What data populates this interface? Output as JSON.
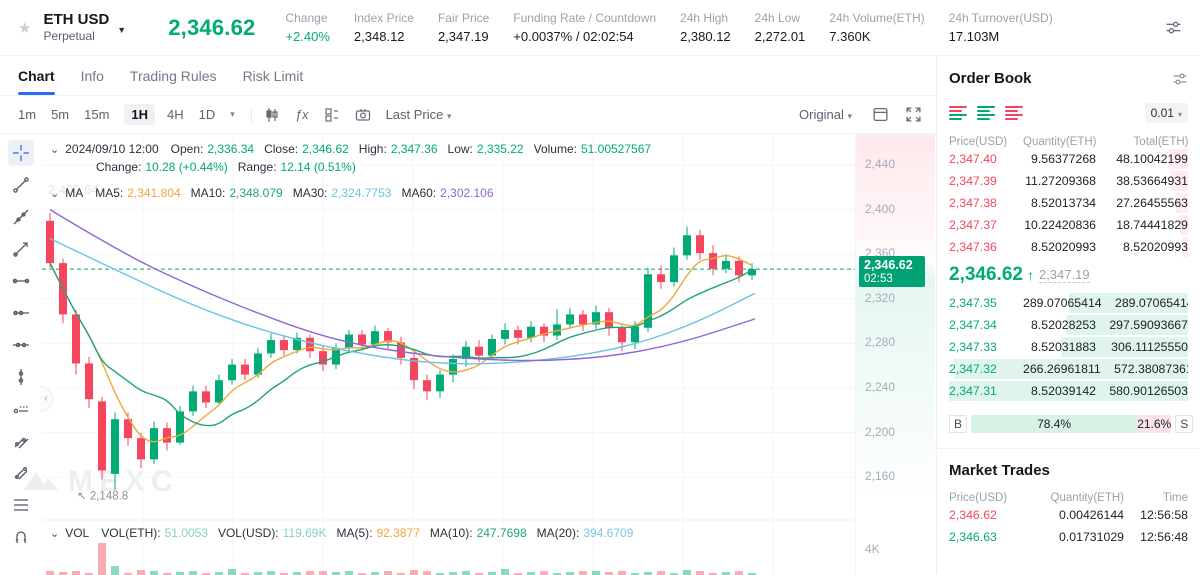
{
  "colors": {
    "green": "#00ab76",
    "red": "#f5465d",
    "blue": "#2b6cf6",
    "tag_green": "#00a273"
  },
  "icons": {
    "favorite": "★",
    "symbol_caret": "▼",
    "dropdown_caret": "▾",
    "legend_collapse": "⌄",
    "collapse_chevron": "‹",
    "fx": "ƒx"
  },
  "header": {
    "symbol": "ETH USD",
    "contract_type": "Perpetual",
    "last_price": "2,346.62",
    "stats": [
      {
        "label": "Change",
        "value": "+2.40%",
        "green": true
      },
      {
        "label": "Index Price",
        "value": "2,348.12"
      },
      {
        "label": "Fair Price",
        "value": "2,347.19"
      },
      {
        "label": "Funding Rate / Countdown",
        "value": "+0.0037% / 02:02:54"
      },
      {
        "label": "24h High",
        "value": "2,380.12"
      },
      {
        "label": "24h Low",
        "value": "2,272.01"
      },
      {
        "label": "24h Volume(ETH)",
        "value": "7.360K"
      },
      {
        "label": "24h Turnover(USD)",
        "value": "17.103M"
      }
    ]
  },
  "tabs": {
    "items": [
      "Chart",
      "Info",
      "Trading Rules",
      "Risk Limit"
    ],
    "active": "Chart"
  },
  "toolbar": {
    "timeframes": [
      "1m",
      "5m",
      "15m",
      "1H",
      "4H",
      "1D"
    ],
    "active_timeframe": "1H",
    "price_mode": "Last Price",
    "chart_style": "Original"
  },
  "legend": {
    "datetime": "2024/09/10 12:00",
    "line1": [
      {
        "label": "Open:",
        "value": "2,336.34"
      },
      {
        "label": "Close:",
        "value": "2,346.62"
      },
      {
        "label": "High:",
        "value": "2,347.36"
      },
      {
        "label": "Low:",
        "value": "2,335.22"
      },
      {
        "label": "Volume:",
        "value": "51.00527567"
      }
    ],
    "line2": [
      {
        "label": "Change:",
        "value": "10.28 (+0.44%)"
      },
      {
        "label": "Range:",
        "value": "12.14 (0.51%)"
      }
    ],
    "ma_label": "MA",
    "ma_items": [
      {
        "label": "MA5:",
        "value": "2,341.804",
        "color": "#efa83a"
      },
      {
        "label": "MA10:",
        "value": "2,348.079",
        "color": "#1fa37f"
      },
      {
        "label": "MA30:",
        "value": "2,324.7753",
        "color": "#6cc2e3"
      },
      {
        "label": "MA60:",
        "value": "2,302.106",
        "color": "#9065d6"
      }
    ],
    "vol_label": "VOL",
    "vol_items": [
      {
        "label": "VOL(ETH):",
        "value": "51.0053",
        "color": "#86cfc3"
      },
      {
        "label": "VOL(USD):",
        "value": "119.69K",
        "color": "#86cfc3"
      },
      {
        "label": "MA(5):",
        "value": "92.3877",
        "color": "#efa83a"
      },
      {
        "label": "MA(10):",
        "value": "247.7698",
        "color": "#1fa37f"
      },
      {
        "label": "MA(20):",
        "value": "394.6709",
        "color": "#7cc3e8"
      }
    ]
  },
  "chart": {
    "axis_ghost": "2,400.64",
    "vol_axis_label": "4K",
    "price_tag": {
      "price": "2,346.62",
      "countdown": "02:53"
    },
    "watermark": "MEXC"
  },
  "chart_data": {
    "type": "candlestick",
    "interval": "1H",
    "title": "ETH USD Perpetual 1H",
    "price_axis_ticks": [
      2440,
      2400,
      2360,
      2320,
      2280,
      2240,
      2200,
      2160
    ],
    "ylim": [
      2130,
      2460
    ],
    "current_price": 2346.62,
    "x0": 50,
    "dx": 13,
    "low_marker": {
      "arrow": "↖",
      "text": "2,148.8",
      "price": 2148.8,
      "candle_index": 5
    },
    "candles": [
      [
        2390,
        2397,
        2348,
        2352
      ],
      [
        2352,
        2356,
        2298,
        2306
      ],
      [
        2306,
        2310,
        2252,
        2262
      ],
      [
        2262,
        2268,
        2222,
        2230
      ],
      [
        2228,
        2232,
        2158,
        2166
      ],
      [
        2163,
        2218,
        2148.8,
        2212
      ],
      [
        2212,
        2218,
        2188,
        2195
      ],
      [
        2195,
        2200,
        2168,
        2176
      ],
      [
        2176,
        2210,
        2172,
        2204
      ],
      [
        2204,
        2209,
        2184,
        2191
      ],
      [
        2191,
        2224,
        2189,
        2219
      ],
      [
        2219,
        2242,
        2215,
        2237
      ],
      [
        2237,
        2242,
        2222,
        2227
      ],
      [
        2227,
        2252,
        2225,
        2247
      ],
      [
        2247,
        2266,
        2243,
        2261
      ],
      [
        2261,
        2266,
        2247,
        2252
      ],
      [
        2252,
        2276,
        2249,
        2271
      ],
      [
        2271,
        2289,
        2267,
        2283
      ],
      [
        2283,
        2287,
        2269,
        2274
      ],
      [
        2274,
        2290,
        2271,
        2285
      ],
      [
        2285,
        2288,
        2267,
        2273
      ],
      [
        2273,
        2278,
        2255,
        2261
      ],
      [
        2261,
        2280,
        2257,
        2276
      ],
      [
        2276,
        2292,
        2271,
        2288
      ],
      [
        2288,
        2292,
        2274,
        2279
      ],
      [
        2279,
        2296,
        2276,
        2291
      ],
      [
        2291,
        2294,
        2275,
        2281
      ],
      [
        2281,
        2286,
        2261,
        2267
      ],
      [
        2267,
        2272,
        2239,
        2247
      ],
      [
        2247,
        2252,
        2229,
        2237
      ],
      [
        2237,
        2256,
        2231,
        2252
      ],
      [
        2252,
        2270,
        2245,
        2266
      ],
      [
        2266,
        2282,
        2259,
        2277
      ],
      [
        2277,
        2283,
        2263,
        2269
      ],
      [
        2269,
        2288,
        2265,
        2284
      ],
      [
        2284,
        2298,
        2279,
        2292
      ],
      [
        2292,
        2296,
        2279,
        2285
      ],
      [
        2285,
        2300,
        2281,
        2295
      ],
      [
        2295,
        2298,
        2281,
        2287
      ],
      [
        2287,
        2311,
        2283,
        2297
      ],
      [
        2297,
        2312,
        2293,
        2306
      ],
      [
        2306,
        2310,
        2291,
        2297
      ],
      [
        2297,
        2314,
        2293,
        2308
      ],
      [
        2308,
        2312,
        2287,
        2294
      ],
      [
        2294,
        2298,
        2273,
        2281
      ],
      [
        2281,
        2300,
        2275,
        2295
      ],
      [
        2294,
        2348,
        2290,
        2342
      ],
      [
        2342,
        2350,
        2329,
        2335
      ],
      [
        2335,
        2366,
        2331,
        2359
      ],
      [
        2359,
        2385,
        2355,
        2377
      ],
      [
        2377,
        2382,
        2355,
        2361
      ],
      [
        2361,
        2368,
        2341,
        2347
      ],
      [
        2347,
        2360,
        2343,
        2354
      ],
      [
        2354,
        2358,
        2335,
        2341
      ],
      [
        2341,
        2352,
        2337,
        2346.62
      ]
    ],
    "ma_overlays": [
      {
        "name": "MA5",
        "period": 5,
        "color": "#efa83a",
        "computed": true
      },
      {
        "name": "MA10",
        "period": 10,
        "color": "#1fa37f",
        "computed": true
      },
      {
        "name": "MA30",
        "period": 30,
        "color": "#6cc2e3",
        "points": [
          [
            50,
            2374
          ],
          [
            120,
            2344
          ],
          [
            190,
            2315
          ],
          [
            260,
            2292
          ],
          [
            330,
            2276
          ],
          [
            400,
            2265
          ],
          [
            460,
            2261
          ],
          [
            520,
            2263
          ],
          [
            580,
            2269
          ],
          [
            640,
            2280
          ],
          [
            700,
            2300
          ],
          [
            755,
            2325
          ]
        ]
      },
      {
        "name": "MA60",
        "period": 60,
        "color": "#9065d6",
        "points": [
          [
            50,
            2400
          ],
          [
            120,
            2362
          ],
          [
            190,
            2332
          ],
          [
            260,
            2306
          ],
          [
            330,
            2284
          ],
          [
            400,
            2272
          ],
          [
            470,
            2266
          ],
          [
            540,
            2264
          ],
          [
            610,
            2268
          ],
          [
            680,
            2280
          ],
          [
            755,
            2302
          ]
        ]
      }
    ],
    "volume_pane": {
      "axis_label": "4K",
      "tall_bar_candle_index": 4
    }
  },
  "order_book": {
    "title": "Order Book",
    "precision": "0.01",
    "columns": [
      "Price(USD)",
      "Quantity(ETH)",
      "Total(ETH)"
    ],
    "asks": [
      {
        "price": "2,347.40",
        "qty": "9.56377268",
        "total": "48.10042199",
        "depth": 8
      },
      {
        "price": "2,347.39",
        "qty": "11.27209368",
        "total": "38.53664931",
        "depth": 7
      },
      {
        "price": "2,347.38",
        "qty": "8.52013734",
        "total": "27.26455563",
        "depth": 5
      },
      {
        "price": "2,347.37",
        "qty": "10.22420836",
        "total": "18.74441829",
        "depth": 3.5
      },
      {
        "price": "2,347.36",
        "qty": "8.52020993",
        "total": "8.52020993",
        "depth": 2
      }
    ],
    "mid": {
      "price": "2,346.62",
      "direction": "↑",
      "fair_price": "2,347.19"
    },
    "bids": [
      {
        "price": "2,347.35",
        "qty": "289.07065414",
        "total": "289.07065414",
        "depth": 50
      },
      {
        "price": "2,347.34",
        "qty": "8.52028253",
        "total": "297.59093667",
        "depth": 51
      },
      {
        "price": "2,347.33",
        "qty": "8.52031883",
        "total": "306.11125550",
        "depth": 53
      },
      {
        "price": "2,347.32",
        "qty": "266.26961811",
        "total": "572.38087361",
        "depth": 98
      },
      {
        "price": "2,347.31",
        "qty": "8.52039142",
        "total": "580.90126503",
        "depth": 100
      }
    ],
    "ratio": {
      "buy_label": "B",
      "buy_pct": "78.4%",
      "sell_pct": "21.6%",
      "sell_label": "S"
    }
  },
  "market_trades": {
    "title": "Market Trades",
    "columns": [
      "Price(USD)",
      "Quantity(ETH)",
      "Time"
    ],
    "rows": [
      {
        "price": "2,346.62",
        "qty": "0.00426144",
        "time": "12:56:58",
        "dir": "down"
      },
      {
        "price": "2,346.63",
        "qty": "0.01731029",
        "time": "12:56:48",
        "dir": "up"
      }
    ]
  }
}
